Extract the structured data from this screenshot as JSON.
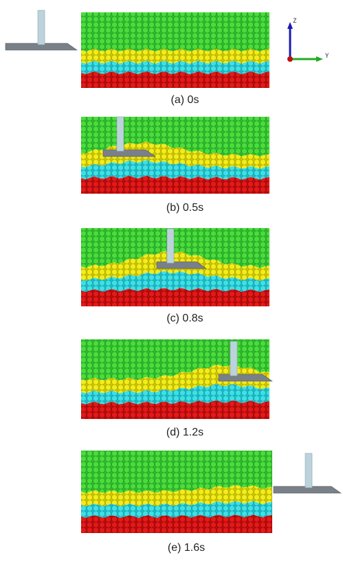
{
  "figure": {
    "panels": [
      {
        "caption": "(a)  0s"
      },
      {
        "caption": "(b)  0.5s"
      },
      {
        "caption": "(c)  0.8s"
      },
      {
        "caption": "(d)  1.2s"
      },
      {
        "caption": "(e)  1.6s"
      }
    ],
    "axes": {
      "z_label": "Z",
      "y_label": "Y"
    }
  }
}
